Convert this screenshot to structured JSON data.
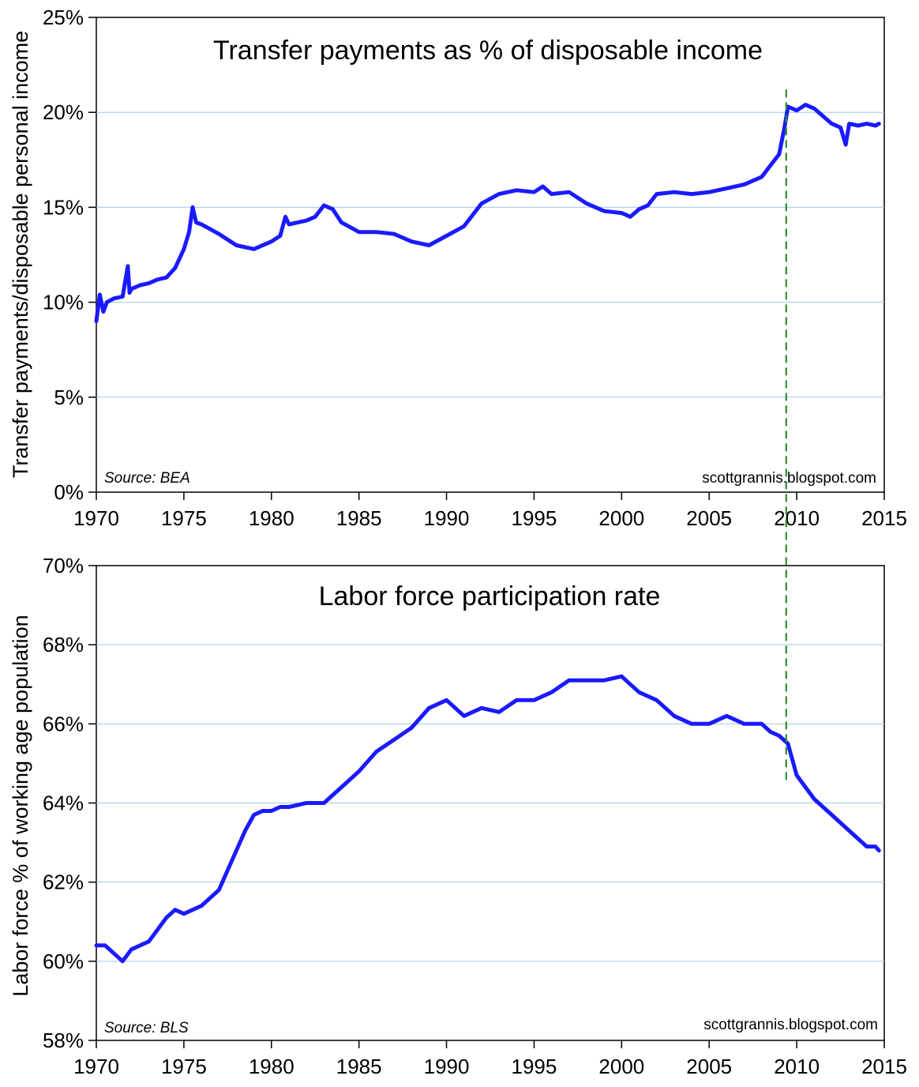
{
  "chart_data": [
    {
      "type": "line",
      "title": "Transfer payments as % of disposable income",
      "ylabel": "Transfer payments/disposable personal income",
      "source": "Source: BEA",
      "credit": "scottgrannis.blogspot.com",
      "xlim": [
        1970,
        2015
      ],
      "ylim": [
        0,
        25
      ],
      "x_ticks": [
        1970,
        1975,
        1980,
        1985,
        1990,
        1995,
        2000,
        2005,
        2010,
        2015
      ],
      "y_ticks": [
        0,
        5,
        10,
        15,
        20,
        25
      ],
      "y_tick_labels": [
        "0%",
        "5%",
        "10%",
        "15%",
        "20%",
        "25%"
      ],
      "grid": "horizontal",
      "line_color": "#1a1aff",
      "marker_color": "#2e8b2e",
      "vertical_marker_x": 2009.4,
      "series": [
        {
          "x": [
            1970.0,
            1970.2,
            1970.4,
            1970.6,
            1971.0,
            1971.5,
            1971.8,
            1971.9,
            1972.0,
            1972.5,
            1973.0,
            1973.5,
            1974.0,
            1974.5,
            1975.0,
            1975.3,
            1975.5,
            1975.7,
            1976.0,
            1977.0,
            1978.0,
            1979.0,
            1980.0,
            1980.5,
            1980.8,
            1981.0,
            1982.0,
            1982.5,
            1983.0,
            1983.5,
            1984.0,
            1985.0,
            1986.0,
            1987.0,
            1988.0,
            1989.0,
            1990.0,
            1991.0,
            1992.0,
            1993.0,
            1994.0,
            1995.0,
            1995.5,
            1996.0,
            1997.0,
            1998.0,
            1999.0,
            2000.0,
            2000.5,
            2001.0,
            2001.5,
            2002.0,
            2003.0,
            2004.0,
            2005.0,
            2006.0,
            2007.0,
            2008.0,
            2008.5,
            2009.0,
            2009.3,
            2009.5,
            2010.0,
            2010.5,
            2011.0,
            2012.0,
            2012.5,
            2012.8,
            2013.0,
            2013.5,
            2014.0,
            2014.5,
            2014.7
          ],
          "y": [
            9.0,
            10.4,
            9.5,
            10.0,
            10.2,
            10.3,
            11.9,
            10.5,
            10.7,
            10.9,
            11.0,
            11.2,
            11.3,
            11.8,
            12.8,
            13.7,
            15.0,
            14.2,
            14.1,
            13.6,
            13.0,
            12.8,
            13.2,
            13.5,
            14.5,
            14.1,
            14.3,
            14.5,
            15.1,
            14.9,
            14.2,
            13.7,
            13.7,
            13.6,
            13.2,
            13.0,
            13.5,
            14.0,
            15.2,
            15.7,
            15.9,
            15.8,
            16.1,
            15.7,
            15.8,
            15.2,
            14.8,
            14.7,
            14.5,
            14.9,
            15.1,
            15.7,
            15.8,
            15.7,
            15.8,
            16.0,
            16.2,
            16.6,
            17.2,
            17.8,
            19.2,
            20.3,
            20.1,
            20.4,
            20.2,
            19.4,
            19.2,
            18.3,
            19.4,
            19.3,
            19.4,
            19.3,
            19.4
          ]
        }
      ]
    },
    {
      "type": "line",
      "title": "Labor force participation rate",
      "ylabel": "Labor force % of working age population",
      "source": "Source: BLS",
      "credit": "scottgrannis.blogspot.com",
      "xlim": [
        1970,
        2015
      ],
      "ylim": [
        58,
        70
      ],
      "x_ticks": [
        1970,
        1975,
        1980,
        1985,
        1990,
        1995,
        2000,
        2005,
        2010,
        2015
      ],
      "y_ticks": [
        58,
        60,
        62,
        64,
        66,
        68,
        70
      ],
      "y_tick_labels": [
        "58%",
        "60%",
        "62%",
        "64%",
        "66%",
        "68%",
        "70%"
      ],
      "grid": "horizontal",
      "line_color": "#1a1aff",
      "marker_color": "#2e8b2e",
      "vertical_marker_x": 2009.4,
      "series": [
        {
          "x": [
            1970.0,
            1970.5,
            1971.0,
            1971.5,
            1972.0,
            1972.5,
            1973.0,
            1973.5,
            1974.0,
            1974.5,
            1975.0,
            1976.0,
            1977.0,
            1977.5,
            1978.0,
            1978.5,
            1979.0,
            1979.5,
            1980.0,
            1980.5,
            1981.0,
            1982.0,
            1983.0,
            1984.0,
            1985.0,
            1986.0,
            1987.0,
            1988.0,
            1989.0,
            1990.0,
            1991.0,
            1992.0,
            1993.0,
            1994.0,
            1995.0,
            1996.0,
            1997.0,
            1998.0,
            1999.0,
            2000.0,
            2000.5,
            2001.0,
            2002.0,
            2003.0,
            2004.0,
            2005.0,
            2006.0,
            2007.0,
            2008.0,
            2008.5,
            2009.0,
            2009.5,
            2010.0,
            2011.0,
            2012.0,
            2013.0,
            2013.5,
            2014.0,
            2014.5,
            2014.7
          ],
          "y": [
            60.4,
            60.4,
            60.2,
            60.0,
            60.3,
            60.4,
            60.5,
            60.8,
            61.1,
            61.3,
            61.2,
            61.4,
            61.8,
            62.3,
            62.8,
            63.3,
            63.7,
            63.8,
            63.8,
            63.9,
            63.9,
            64.0,
            64.0,
            64.4,
            64.8,
            65.3,
            65.6,
            65.9,
            66.4,
            66.6,
            66.2,
            66.4,
            66.3,
            66.6,
            66.6,
            66.8,
            67.1,
            67.1,
            67.1,
            67.2,
            67.0,
            66.8,
            66.6,
            66.2,
            66.0,
            66.0,
            66.2,
            66.0,
            66.0,
            65.8,
            65.7,
            65.5,
            64.7,
            64.1,
            63.7,
            63.3,
            63.1,
            62.9,
            62.9,
            62.8
          ]
        }
      ]
    }
  ]
}
